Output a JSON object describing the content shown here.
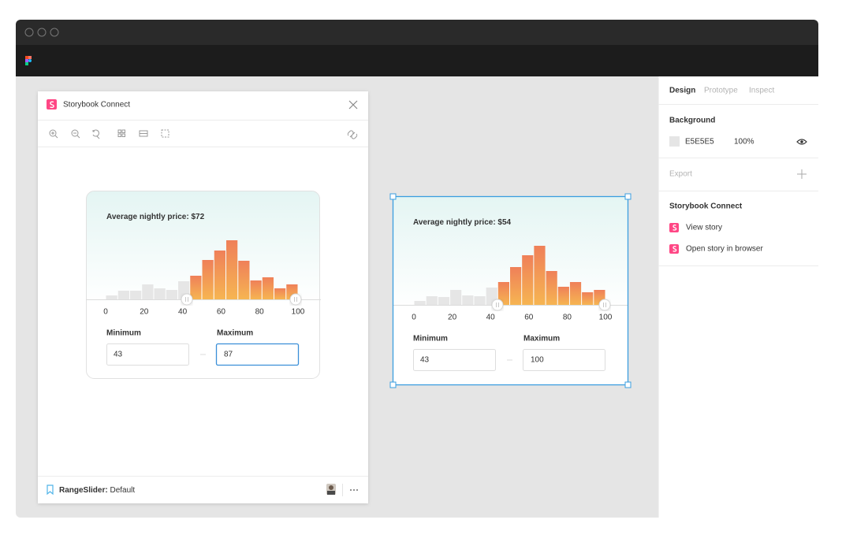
{
  "plugin": {
    "title": "Storybook Connect",
    "footer": {
      "component": "RangeSlider:",
      "story": "Default"
    },
    "widget": {
      "label": "Average nightly price:",
      "price": "$72",
      "histogram": [
        5,
        11,
        11,
        19,
        14,
        12,
        23,
        30,
        50,
        62,
        75,
        49,
        24,
        28,
        14,
        19
      ],
      "axis_ticks": [
        0,
        20,
        40,
        60,
        80,
        100
      ],
      "minimum_label": "Minimum",
      "minimum": 43,
      "maximum_label": "Maximum",
      "maximum": 87
    }
  },
  "canvas_frame": {
    "widget": {
      "label": "Average nightly price: $54",
      "histogram": [
        5,
        11,
        10,
        19,
        12,
        11,
        22,
        29,
        48,
        63,
        75,
        43,
        23,
        29,
        16,
        19
      ],
      "axis_ticks": [
        0,
        20,
        40,
        60,
        80,
        100
      ],
      "minimum_label": "Minimum",
      "minimum": 43,
      "maximum_label": "Maximum",
      "maximum": 100
    }
  },
  "sidebar": {
    "tabs": [
      "Design",
      "Prototype",
      "Inspect"
    ],
    "background": {
      "heading": "Background",
      "color": "E5E5E5",
      "opacity": "100%"
    },
    "export": "Export",
    "storybook": {
      "heading": "Storybook Connect",
      "links": [
        "View story",
        "Open story in browser"
      ]
    }
  }
}
